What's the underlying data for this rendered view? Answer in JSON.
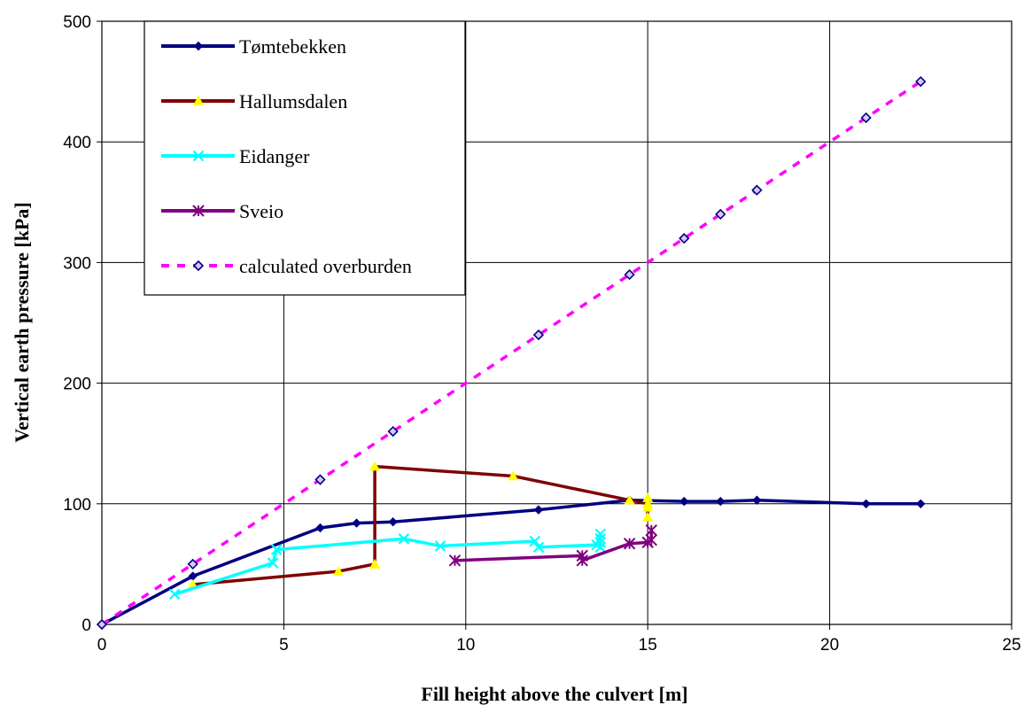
{
  "chart_data": {
    "type": "line",
    "title": "",
    "xlabel": "Fill height above the culvert [m]",
    "ylabel": "Vertical earth pressure [kPa]",
    "xlim": [
      0,
      25
    ],
    "ylim": [
      0,
      500
    ],
    "xticks": [
      "0",
      "5",
      "10",
      "15",
      "20",
      "25"
    ],
    "yticks": [
      "0",
      "100",
      "200",
      "300",
      "400",
      "500"
    ],
    "grid": true,
    "legend_position": "top-left",
    "series": [
      {
        "name": "Tømtebekken",
        "color": "#000080",
        "marker": "diamond",
        "line_style": "solid",
        "points": [
          [
            0,
            0
          ],
          [
            2.5,
            40
          ],
          [
            6,
            80
          ],
          [
            7,
            84
          ],
          [
            8,
            85
          ],
          [
            12,
            95
          ],
          [
            14.5,
            103
          ],
          [
            16,
            102
          ],
          [
            17,
            102
          ],
          [
            18,
            103
          ],
          [
            21,
            100
          ],
          [
            22.5,
            100
          ]
        ]
      },
      {
        "name": "Hallumsdalen",
        "color": "#800000",
        "marker_color": "#FFFF00",
        "marker": "triangle",
        "line_style": "solid",
        "points": [
          [
            2.5,
            33
          ],
          [
            6.5,
            44
          ],
          [
            7.5,
            50
          ],
          [
            7.5,
            131
          ],
          [
            11.3,
            123
          ],
          [
            14.5,
            103
          ],
          [
            15,
            100
          ],
          [
            15,
            105
          ],
          [
            15,
            97
          ],
          [
            15,
            89
          ]
        ]
      },
      {
        "name": "Eidanger",
        "color": "#00FFFF",
        "marker": "x",
        "line_style": "solid",
        "points": [
          [
            2,
            25
          ],
          [
            4.7,
            51
          ],
          [
            4.8,
            62
          ],
          [
            8.3,
            71
          ],
          [
            9.3,
            65
          ],
          [
            11.9,
            69
          ],
          [
            12,
            64
          ],
          [
            13.6,
            66
          ],
          [
            13.7,
            75
          ],
          [
            13.7,
            71
          ],
          [
            13.7,
            68
          ],
          [
            13.7,
            64
          ]
        ]
      },
      {
        "name": "Sveio",
        "color": "#800080",
        "marker": "asterisk",
        "line_style": "solid",
        "points": [
          [
            9.7,
            53
          ],
          [
            13.2,
            57
          ],
          [
            13.2,
            53
          ],
          [
            14.5,
            67
          ],
          [
            15,
            68
          ],
          [
            15.1,
            70
          ],
          [
            15.1,
            78
          ]
        ]
      },
      {
        "name": "calculated overburden",
        "color": "#FF00FF",
        "marker_color": "#000080",
        "marker": "diamond-open",
        "line_style": "dashed",
        "points": [
          [
            0,
            0
          ],
          [
            2.5,
            50
          ],
          [
            6,
            120
          ],
          [
            8,
            160
          ],
          [
            12,
            240
          ],
          [
            14.5,
            290
          ],
          [
            16,
            320
          ],
          [
            17,
            340
          ],
          [
            18,
            360
          ],
          [
            21,
            420
          ],
          [
            22.5,
            450
          ]
        ]
      }
    ]
  }
}
